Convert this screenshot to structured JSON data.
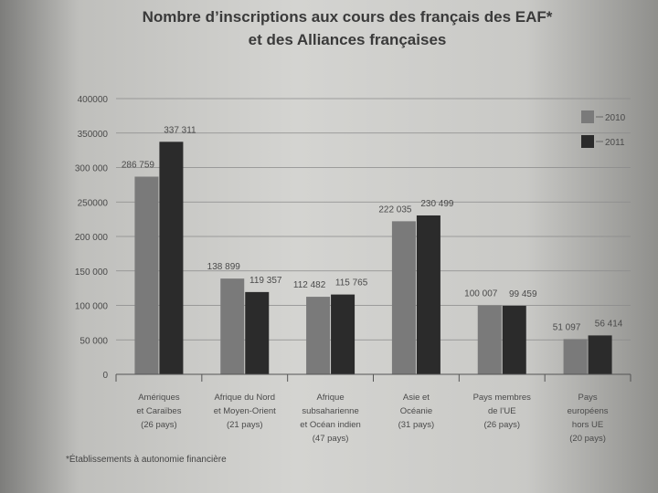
{
  "title": {
    "line1": "Nombre d’inscriptions aux cours des français des EAF*",
    "line2": "et des Alliances françaises"
  },
  "footnote": "*Établissements à autonomie financière",
  "colors": {
    "s2010": "#7a7a7a",
    "s2011": "#2b2b2b",
    "grid": "#8a8a8a",
    "axis": "#555555"
  },
  "chart_data": {
    "type": "bar",
    "title": "Nombre d’inscriptions aux cours des français des EAF* et des Alliances françaises",
    "xlabel": "",
    "ylabel": "",
    "ylim": [
      0,
      400000
    ],
    "yticks": [
      {
        "value": 0,
        "label": "0"
      },
      {
        "value": 50000,
        "label": "50 000"
      },
      {
        "value": 100000,
        "label": "100 000"
      },
      {
        "value": 150000,
        "label": "150 000"
      },
      {
        "value": 200000,
        "label": "200 000"
      },
      {
        "value": 250000,
        "label": "250000"
      },
      {
        "value": 300000,
        "label": "300 000"
      },
      {
        "value": 350000,
        "label": "350000"
      },
      {
        "value": 400000,
        "label": "400000"
      }
    ],
    "grid": true,
    "legend_position": "top-right",
    "categories": [
      [
        "Amériques",
        "et Caraïbes",
        "(26 pays)"
      ],
      [
        "Afrique du Nord",
        "et Moyen-Orient",
        "(21 pays)"
      ],
      [
        "Afrique",
        "subsaharienne",
        "et Océan indien",
        "(47 pays)"
      ],
      [
        "Asie et",
        "Océanie",
        "(31 pays)"
      ],
      [
        "Pays membres",
        "de l’UE",
        "(26 pays)"
      ],
      [
        "Pays",
        "européens",
        "hors UE",
        "(20 pays)"
      ]
    ],
    "series": [
      {
        "name": "2010",
        "values": [
          286759,
          138899,
          112482,
          222035,
          100007,
          51097
        ],
        "labels": [
          "286 759",
          "138 899",
          "112 482",
          "222 035",
          "100 007",
          "51 097"
        ]
      },
      {
        "name": "2011",
        "values": [
          337311,
          119357,
          115765,
          230499,
          99459,
          56414
        ],
        "labels": [
          "337 311",
          "119 357",
          "115 765",
          "230 499",
          "99 459",
          "56 414"
        ]
      }
    ]
  }
}
